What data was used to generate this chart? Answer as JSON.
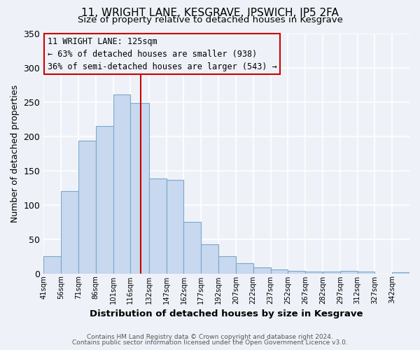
{
  "title_line1": "11, WRIGHT LANE, KESGRAVE, IPSWICH, IP5 2FA",
  "title_line2": "Size of property relative to detached houses in Kesgrave",
  "xlabel": "Distribution of detached houses by size in Kesgrave",
  "ylabel": "Number of detached properties",
  "bin_labels": [
    "41sqm",
    "56sqm",
    "71sqm",
    "86sqm",
    "101sqm",
    "116sqm",
    "132sqm",
    "147sqm",
    "162sqm",
    "177sqm",
    "192sqm",
    "207sqm",
    "222sqm",
    "237sqm",
    "252sqm",
    "267sqm",
    "282sqm",
    "297sqm",
    "312sqm",
    "327sqm",
    "342sqm"
  ],
  "bin_edges": [
    41,
    56,
    71,
    86,
    101,
    116,
    132,
    147,
    162,
    177,
    192,
    207,
    222,
    237,
    252,
    267,
    282,
    297,
    312,
    327,
    342,
    357
  ],
  "bar_values": [
    25,
    120,
    193,
    215,
    261,
    248,
    138,
    136,
    75,
    42,
    25,
    15,
    9,
    6,
    4,
    3,
    3,
    4,
    3,
    0,
    2
  ],
  "bar_color": "#c8d8ee",
  "bar_edge_color": "#7aa8cc",
  "property_size": 125,
  "vline_color": "#cc0000",
  "annotation_line1": "11 WRIGHT LANE: 125sqm",
  "annotation_line2": "← 63% of detached houses are smaller (938)",
  "annotation_line3": "36% of semi-detached houses are larger (543) →",
  "annotation_box_edge": "#cc0000",
  "bg_color": "#eef2f8",
  "plot_bg_color": "#eef2f8",
  "grid_color": "#ffffff",
  "ylim": [
    0,
    350
  ],
  "yticks": [
    0,
    50,
    100,
    150,
    200,
    250,
    300,
    350
  ],
  "footer_line1": "Contains HM Land Registry data © Crown copyright and database right 2024.",
  "footer_line2": "Contains public sector information licensed under the Open Government Licence v3.0."
}
